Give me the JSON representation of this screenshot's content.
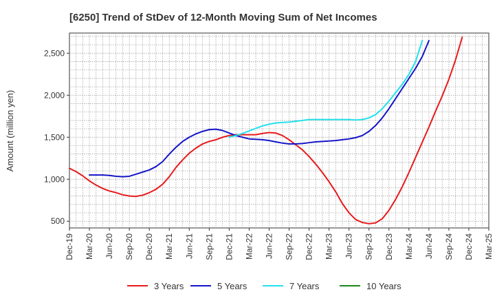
{
  "chart_data": {
    "type": "line",
    "title": "[6250]  Trend of StDev of 12-Month Moving Sum of Net Incomes",
    "xlabel": "",
    "ylabel": "Amount (million yen)",
    "x_ticks": [
      "Dec-19",
      "Mar-20",
      "Jun-20",
      "Sep-20",
      "Dec-20",
      "Mar-21",
      "Jun-21",
      "Sep-21",
      "Dec-21",
      "Mar-22",
      "Jun-22",
      "Sep-22",
      "Dec-22",
      "Mar-23",
      "Jun-23",
      "Sep-23",
      "Dec-23",
      "Mar-24",
      "Jun-24",
      "Sep-24",
      "Dec-24",
      "Mar-25"
    ],
    "y_ticks": [
      500,
      1000,
      1500,
      2000,
      2500
    ],
    "y_tick_labels": [
      "500",
      "1,000",
      "1,500",
      "2,000",
      "2,500"
    ],
    "ylim": [
      420,
      2740
    ],
    "grid": true,
    "legend_position": "bottom",
    "series": [
      {
        "name": "3 Years",
        "color": "#e8191b",
        "start": "Dec-19",
        "values": [
          1130,
          1090,
          1040,
          980,
          930,
          890,
          860,
          840,
          815,
          800,
          795,
          810,
          840,
          880,
          940,
          1030,
          1140,
          1230,
          1310,
          1370,
          1420,
          1450,
          1470,
          1500,
          1520,
          1530,
          1530,
          1530,
          1530,
          1545,
          1555,
          1550,
          1520,
          1470,
          1410,
          1350,
          1270,
          1180,
          1080,
          970,
          850,
          710,
          600,
          520,
          485,
          470,
          480,
          530,
          630,
          760,
          910,
          1080,
          1260,
          1440,
          1620,
          1810,
          1990,
          2190,
          2420,
          2690
        ]
      },
      {
        "name": "5 Years",
        "color": "#1414c8",
        "start": "Mar-20",
        "values": [
          1050,
          1050,
          1050,
          1045,
          1035,
          1030,
          1035,
          1060,
          1085,
          1110,
          1150,
          1210,
          1300,
          1380,
          1450,
          1500,
          1540,
          1570,
          1590,
          1595,
          1580,
          1550,
          1520,
          1500,
          1480,
          1475,
          1470,
          1460,
          1445,
          1430,
          1420,
          1420,
          1425,
          1435,
          1445,
          1450,
          1455,
          1460,
          1470,
          1480,
          1495,
          1520,
          1570,
          1640,
          1730,
          1840,
          1960,
          2080,
          2200,
          2320,
          2460,
          2650
        ]
      },
      {
        "name": "7 Years",
        "color": "#22e0ea",
        "start": "Dec-21",
        "values": [
          1500,
          1520,
          1545,
          1575,
          1605,
          1635,
          1655,
          1670,
          1675,
          1680,
          1690,
          1700,
          1710,
          1710,
          1710,
          1710,
          1710,
          1710,
          1710,
          1705,
          1710,
          1730,
          1770,
          1840,
          1930,
          2030,
          2130,
          2250,
          2400,
          2650
        ]
      },
      {
        "name": "10 Years",
        "color": "#1a8a1a",
        "start": "Dec-24",
        "values": []
      }
    ]
  }
}
